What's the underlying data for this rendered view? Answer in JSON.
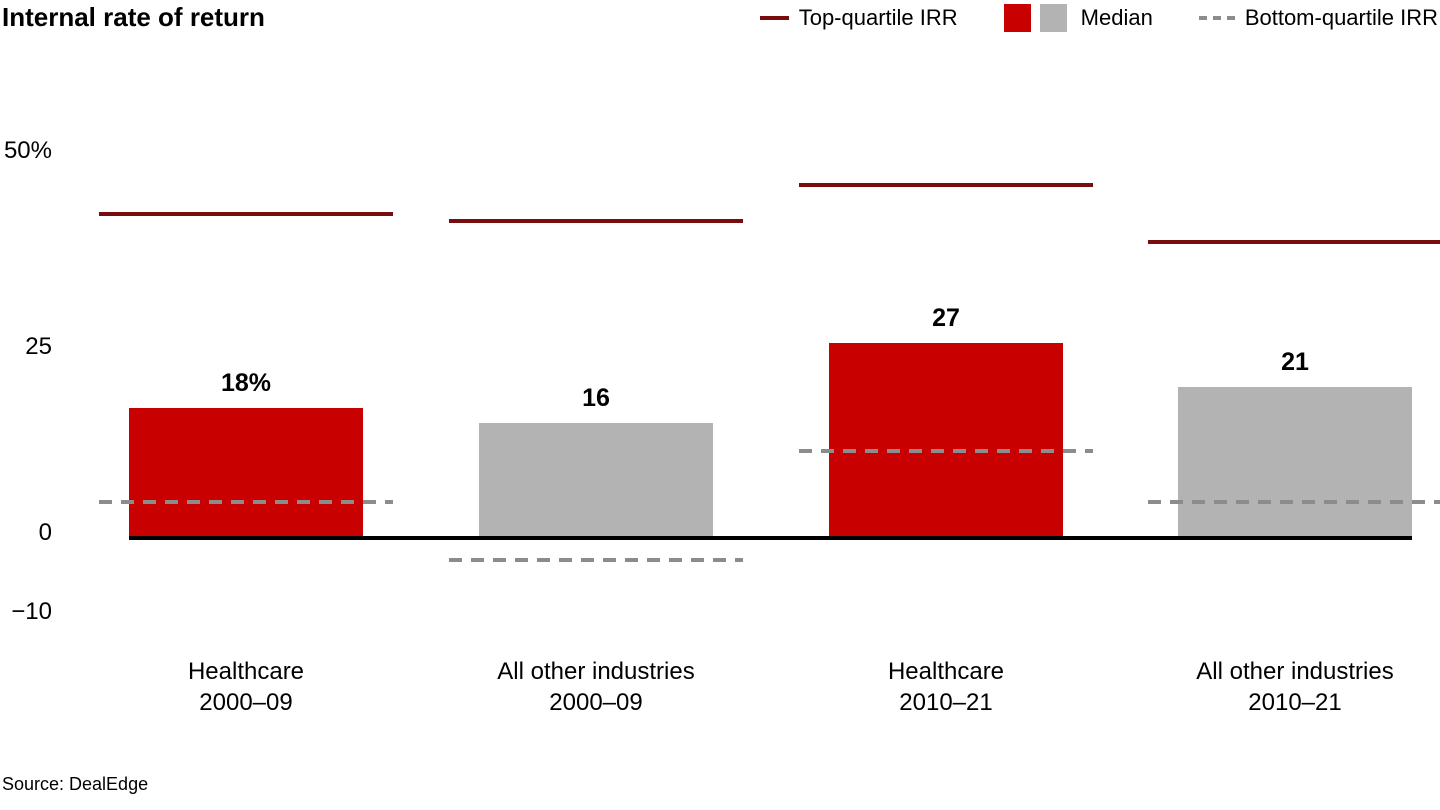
{
  "source": "Source: DealEdge",
  "colors": {
    "healthcare_bar": "#c80000",
    "other_industries_bar": "#b3b3b3",
    "top_quartile_line": "#780d0f",
    "bottom_quartile_line": "#8c8c8c",
    "axis_baseline": "#000000"
  },
  "legend": {
    "position": "top-right",
    "items": [
      {
        "swatch": "solid-line",
        "label": "Top-quartile IRR"
      },
      {
        "swatch": "red-and-gray-squares",
        "label": "Median"
      },
      {
        "swatch": "dashed-line",
        "label": "Bottom-quartile IRR"
      }
    ]
  },
  "chart_data": {
    "type": "bar",
    "title": "Internal rate of return",
    "value_unit": "%",
    "ylim": [
      -10,
      50
    ],
    "grid": false,
    "legend_position": "top-right",
    "categories": [
      "Healthcare 2000–09",
      "All other industries 2000–09",
      "Healthcare 2010–21",
      "All other industries 2010–21"
    ],
    "groups": [
      {
        "label_line1": "Healthcare",
        "label_line2": "2000–09",
        "median": 18,
        "median_label": "18%",
        "top_quartile": 45,
        "bottom_quartile": 5,
        "color_key": "healthcare_bar"
      },
      {
        "label_line1": "All other industries",
        "label_line2": "2000–09",
        "median": 16,
        "median_label": "16",
        "top_quartile": 44,
        "bottom_quartile": -3,
        "color_key": "other_industries_bar"
      },
      {
        "label_line1": "Healthcare",
        "label_line2": "2010–21",
        "median": 27,
        "median_label": "27",
        "top_quartile": 49,
        "bottom_quartile": 12,
        "color_key": "healthcare_bar"
      },
      {
        "label_line1": "All other industries",
        "label_line2": "2010–21",
        "median": 21,
        "median_label": "21",
        "top_quartile": 41,
        "bottom_quartile": 5,
        "color_key": "other_industries_bar"
      }
    ],
    "y_axis": {
      "ticks": [
        {
          "value": 50,
          "label": "50%"
        },
        {
          "value": 25,
          "label": "25"
        },
        {
          "value": 0,
          "label": "0"
        },
        {
          "value": -10,
          "label": "−10"
        }
      ]
    },
    "series_legend": [
      "Top-quartile IRR",
      "Median",
      "Bottom-quartile IRR"
    ]
  }
}
